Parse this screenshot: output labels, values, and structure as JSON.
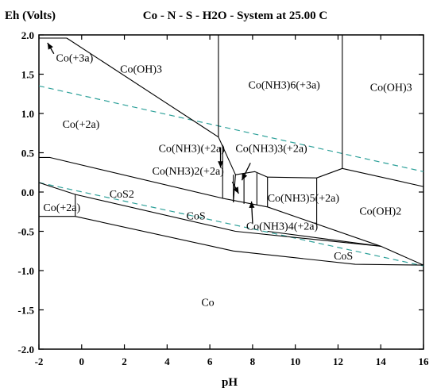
{
  "chart_data": {
    "type": "phase_diagram",
    "title": "Co - N - S - H2O - System at 25.00 C",
    "ylabel": "Eh (Volts)",
    "xlabel": "pH",
    "xlim": [
      -2,
      16
    ],
    "ylim": [
      -2.0,
      2.0
    ],
    "x_ticks": [
      "-2",
      "0",
      "2",
      "4",
      "6",
      "8",
      "10",
      "12",
      "14",
      "16"
    ],
    "y_ticks": [
      "2.0",
      "1.5",
      "1.0",
      "0.5",
      "0.0",
      "-0.5",
      "-1.0",
      "-1.5",
      "-2.0"
    ],
    "grid": false,
    "colors": {
      "boundary": "#000000",
      "water_lines": "#2ea19a"
    },
    "water_stability_lines": [
      {
        "points": [
          [
            -2,
            1.35
          ],
          [
            16,
            0.26
          ]
        ]
      },
      {
        "points": [
          [
            -2,
            0.12
          ],
          [
            16,
            -0.94
          ]
        ]
      }
    ],
    "boundaries": [
      {
        "points": [
          [
            -2,
            1.96
          ],
          [
            -0.7,
            1.96
          ]
        ]
      },
      {
        "points": [
          [
            -0.7,
            1.96
          ],
          [
            6.4,
            0.7
          ],
          [
            7.2,
            0.22
          ],
          [
            7.1,
            -0.13
          ]
        ]
      },
      {
        "points": [
          [
            6.4,
            2.0
          ],
          [
            6.4,
            0.7
          ]
        ]
      },
      {
        "points": [
          [
            12.2,
            2.0
          ],
          [
            12.2,
            0.3
          ]
        ]
      },
      {
        "points": [
          [
            6.6,
            0.6
          ],
          [
            6.6,
            -0.08
          ]
        ]
      },
      {
        "points": [
          [
            7.2,
            0.22
          ],
          [
            8.1,
            0.26
          ],
          [
            8.7,
            0.19
          ],
          [
            11.0,
            0.18
          ],
          [
            12.2,
            0.3
          ],
          [
            16,
            0.07
          ]
        ]
      },
      {
        "points": [
          [
            7.1,
            -0.13
          ],
          [
            7.1,
            0.22
          ]
        ]
      },
      {
        "points": [
          [
            7.6,
            -0.15
          ],
          [
            7.6,
            0.23
          ]
        ]
      },
      {
        "points": [
          [
            8.2,
            -0.17
          ],
          [
            8.2,
            0.24
          ]
        ]
      },
      {
        "points": [
          [
            8.7,
            -0.19
          ],
          [
            8.7,
            0.19
          ]
        ]
      },
      {
        "points": [
          [
            11.0,
            -0.42
          ],
          [
            11.0,
            0.18
          ]
        ]
      },
      {
        "points": [
          [
            -2,
            0.44
          ],
          [
            -1.5,
            0.44
          ],
          [
            6.6,
            -0.08
          ],
          [
            8.7,
            -0.19
          ],
          [
            14.0,
            -0.69
          ]
        ]
      },
      {
        "points": [
          [
            -2,
            0.12
          ],
          [
            -0.3,
            -0.03
          ],
          [
            7.2,
            -0.5
          ],
          [
            14.0,
            -0.69
          ],
          [
            16,
            -0.93
          ]
        ]
      },
      {
        "points": [
          [
            -0.3,
            -0.03
          ],
          [
            -0.3,
            -0.31
          ]
        ]
      },
      {
        "points": [
          [
            -2,
            -0.31
          ],
          [
            -0.3,
            -0.31
          ],
          [
            7.1,
            -0.75
          ],
          [
            12.8,
            -0.92
          ],
          [
            16,
            -0.93
          ]
        ]
      },
      {
        "points": [
          [
            8.7,
            -0.5
          ],
          [
            14.0,
            -0.69
          ]
        ]
      }
    ],
    "region_labels": [
      {
        "text": "Co(+3a)",
        "x": -1.2,
        "y": 1.66
      },
      {
        "text": "Co(OH)3",
        "x": 1.8,
        "y": 1.52
      },
      {
        "text": "Co(NH3)6(+3a)",
        "x": 7.8,
        "y": 1.32
      },
      {
        "text": "Co(OH)3",
        "x": 13.5,
        "y": 1.29
      },
      {
        "text": "Co(+2a)",
        "x": -0.9,
        "y": 0.82
      },
      {
        "text": "Co(NH3)(+2a)",
        "x": 3.6,
        "y": 0.51
      },
      {
        "text": "Co(NH3)3(+2a)",
        "x": 7.2,
        "y": 0.51
      },
      {
        "text": "Co(NH3)2(+2a)",
        "x": 3.3,
        "y": 0.22
      },
      {
        "text": "CoS2",
        "x": 1.3,
        "y": -0.07
      },
      {
        "text": "Co(NH3)5(+2a)",
        "x": 8.7,
        "y": -0.12
      },
      {
        "text": "Co(+2a)",
        "x": -1.8,
        "y": -0.24
      },
      {
        "text": "CoS",
        "x": 4.9,
        "y": -0.35
      },
      {
        "text": "Co(NH3)4(+2a)",
        "x": 7.7,
        "y": -0.48
      },
      {
        "text": "Co(OH)2",
        "x": 13.0,
        "y": -0.29
      },
      {
        "text": "CoS",
        "x": 11.8,
        "y": -0.86
      },
      {
        "text": "Co",
        "x": 5.6,
        "y": -1.45
      }
    ],
    "arrows": [
      {
        "from": [
          -1.3,
          1.76
        ],
        "to": [
          -1.6,
          1.9
        ]
      },
      {
        "from": [
          6.5,
          0.57
        ],
        "to": [
          6.5,
          0.31
        ]
      },
      {
        "from": [
          7.05,
          0.13
        ],
        "to": [
          7.35,
          -0.02
        ]
      },
      {
        "from": [
          7.9,
          0.37
        ],
        "to": [
          7.5,
          0.15
        ]
      },
      {
        "from": [
          8.0,
          -0.4
        ],
        "to": [
          7.95,
          -0.12
        ]
      }
    ]
  }
}
